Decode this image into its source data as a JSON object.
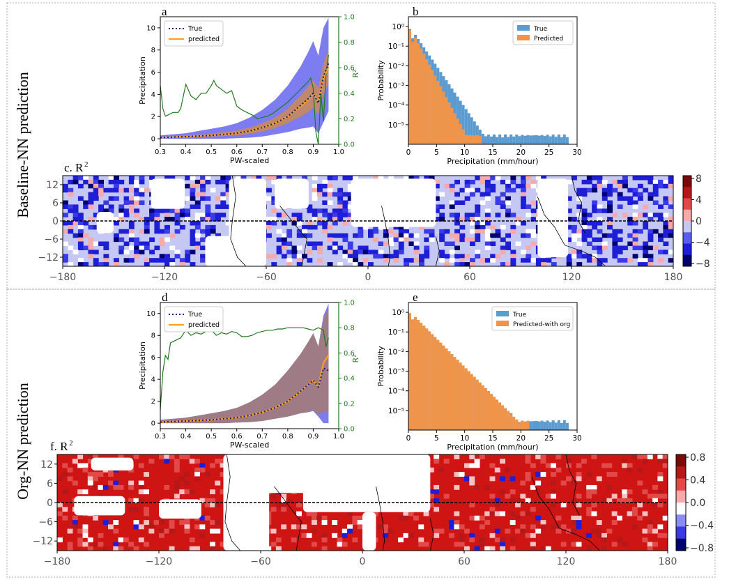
{
  "rows": [
    {
      "row_label": "Baseline-NN prediction"
    },
    {
      "row_label": "Org-NN prediction"
    }
  ],
  "colors": {
    "true_line": "#1a1a6e",
    "predicted_line": "#ff9f1c",
    "r2_line": "#1f7a1f",
    "true_band": "#6666ee",
    "predicted_band_a": "#d08a4a",
    "predicted_band_d": "#a87a6a",
    "hist_true": "#5b9bd0",
    "hist_pred": "#f0944a",
    "map_fill_a": "#c4c8f2",
    "map_fill_b": "#cf1414"
  },
  "chart_data": [
    {
      "panel": "a",
      "type": "line",
      "xlabel": "PW-scaled",
      "ylabel": "Precipitation",
      "ylabel2": "R²",
      "xlim": [
        0.3,
        1.0
      ],
      "ylim": [
        -0.5,
        11
      ],
      "ylim2": [
        0,
        1.0
      ],
      "xticks": [
        "0.3",
        "0.4",
        "0.5",
        "0.6",
        "0.7",
        "0.8",
        "0.9",
        "1.0"
      ],
      "yticks": [
        "0",
        "2",
        "4",
        "6",
        "8",
        "10"
      ],
      "yticks2": [
        "0.0",
        "0.2",
        "0.4",
        "0.6",
        "0.8",
        "1.0"
      ],
      "legend": [
        "True",
        "predicted"
      ],
      "x": [
        0.3,
        0.35,
        0.4,
        0.45,
        0.5,
        0.55,
        0.6,
        0.65,
        0.7,
        0.75,
        0.8,
        0.85,
        0.88,
        0.9,
        0.92,
        0.94,
        0.96
      ],
      "series": [
        {
          "name": "True",
          "values": [
            0.1,
            0.15,
            0.2,
            0.25,
            0.3,
            0.4,
            0.5,
            0.7,
            1.0,
            1.4,
            2.0,
            3.0,
            3.6,
            4.1,
            3.2,
            5.6,
            6.8
          ]
        },
        {
          "name": "predicted",
          "values": [
            0.1,
            0.15,
            0.2,
            0.25,
            0.3,
            0.4,
            0.5,
            0.7,
            1.0,
            1.4,
            2.0,
            2.9,
            3.5,
            4.0,
            3.4,
            5.4,
            6.5
          ]
        }
      ],
      "true_band_low": [
        0,
        0,
        0,
        0,
        0,
        0,
        0.05,
        0.1,
        0.2,
        0.4,
        0.6,
        0.9,
        1.0,
        1.1,
        0.5,
        1.5,
        2.5
      ],
      "true_band_high": [
        0.3,
        0.4,
        0.5,
        0.7,
        0.9,
        1.1,
        1.4,
        1.9,
        2.6,
        3.5,
        4.8,
        6.5,
        7.8,
        8.8,
        7.5,
        10.0,
        10.9
      ],
      "pred_band_low": [
        0.05,
        0.1,
        0.1,
        0.15,
        0.2,
        0.25,
        0.3,
        0.45,
        0.65,
        0.95,
        1.4,
        2.0,
        2.4,
        2.8,
        2.2,
        4.0,
        5.0
      ],
      "pred_band_high": [
        0.15,
        0.2,
        0.3,
        0.35,
        0.45,
        0.6,
        0.75,
        1.0,
        1.4,
        1.9,
        2.7,
        3.9,
        4.7,
        5.3,
        4.6,
        6.8,
        8.0
      ],
      "r2_x": [
        0.3,
        0.31,
        0.32,
        0.33,
        0.35,
        0.37,
        0.38,
        0.4,
        0.42,
        0.44,
        0.46,
        0.48,
        0.5,
        0.51,
        0.52,
        0.54,
        0.56,
        0.58,
        0.6,
        0.62,
        0.64,
        0.66,
        0.68,
        0.7,
        0.72,
        0.74,
        0.76,
        0.78,
        0.8,
        0.82,
        0.84,
        0.86,
        0.88,
        0.89,
        0.9,
        0.91,
        0.92,
        0.93,
        0.94,
        0.95,
        0.96
      ],
      "r2": [
        0.46,
        0.28,
        0.22,
        0.23,
        0.25,
        0.25,
        0.28,
        0.47,
        0.38,
        0.35,
        0.4,
        0.4,
        0.46,
        0.5,
        0.46,
        0.43,
        0.4,
        0.42,
        0.3,
        0.27,
        0.25,
        0.23,
        0.2,
        0.21,
        0.22,
        0.24,
        0.27,
        0.3,
        0.33,
        0.37,
        0.41,
        0.45,
        0.49,
        0.52,
        0.44,
        0.1,
        0.0,
        0.4,
        0.18,
        0.54,
        0.7
      ]
    },
    {
      "panel": "b",
      "type": "bar",
      "xlabel": "Precipitation (mm/hour)",
      "ylabel": "Probability",
      "yscale": "log",
      "xlim": [
        0,
        30
      ],
      "ylim_exp": [
        -6,
        0.5
      ],
      "xticks": [
        "0",
        "5",
        "10",
        "15",
        "20",
        "25",
        "30"
      ],
      "yticks": [
        "10⁰",
        "10⁻¹",
        "10⁻²",
        "10⁻³",
        "10⁻⁴",
        "10⁻⁵"
      ],
      "legend": [
        "True",
        "Predicted"
      ],
      "true_max": 28.5,
      "pred_max": 12.8,
      "series": [
        {
          "name": "True",
          "log10_at_0": 0.1,
          "log10_slope_per_mm": -0.42
        },
        {
          "name": "Predicted",
          "log10_at_0": 0.12,
          "log10_slope_per_mm": -0.55
        }
      ]
    },
    {
      "panel": "c",
      "type": "heatmap",
      "title": "c. R",
      "title_sup": "2",
      "xticks": [
        "−180",
        "−120",
        "−60",
        "0",
        "60",
        "120",
        "180"
      ],
      "yticks": [
        "12",
        "6",
        "0",
        "−6",
        "−12"
      ],
      "colorbar_ticks": [
        "8",
        "4",
        "0",
        "−4",
        "−8"
      ],
      "colorbar_colors": [
        "#7a0a0a",
        "#b51818",
        "#e24a4a",
        "#f8aaaa",
        "#c4c8f2",
        "#5a5cf0",
        "#1e1ed6",
        "#00006e"
      ]
    },
    {
      "panel": "d",
      "type": "line",
      "xlabel": "PW-scaled",
      "ylabel": "Precipitation",
      "ylabel2": "R²",
      "xlim": [
        0.3,
        1.0
      ],
      "ylim": [
        -0.5,
        11
      ],
      "ylim2": [
        0,
        1.0
      ],
      "xticks": [
        "0.3",
        "0.4",
        "0.5",
        "0.6",
        "0.7",
        "0.8",
        "0.9",
        "1.0"
      ],
      "yticks": [
        "0",
        "2",
        "4",
        "6",
        "8",
        "10"
      ],
      "yticks2": [
        "0.0",
        "0.2",
        "0.4",
        "0.6",
        "0.8",
        "1.0"
      ],
      "legend": [
        "True",
        "predicted"
      ],
      "x": [
        0.3,
        0.35,
        0.4,
        0.45,
        0.5,
        0.55,
        0.6,
        0.65,
        0.7,
        0.75,
        0.8,
        0.85,
        0.88,
        0.9,
        0.92,
        0.94,
        0.96
      ],
      "series": [
        {
          "name": "True",
          "values": [
            0.1,
            0.15,
            0.2,
            0.25,
            0.3,
            0.4,
            0.5,
            0.7,
            1.0,
            1.4,
            2.0,
            2.9,
            3.5,
            3.9,
            3.3,
            5.0,
            4.8
          ]
        },
        {
          "name": "predicted",
          "values": [
            0.1,
            0.15,
            0.2,
            0.25,
            0.3,
            0.4,
            0.5,
            0.7,
            1.0,
            1.4,
            2.0,
            2.9,
            3.5,
            3.9,
            3.3,
            5.5,
            6.2
          ]
        }
      ],
      "true_band_low": [
        0,
        0,
        0,
        0,
        0,
        0,
        0.05,
        0.1,
        0.2,
        0.4,
        0.6,
        0.9,
        1.0,
        1.1,
        0.6,
        0.0,
        0.0
      ],
      "true_band_high": [
        0.3,
        0.4,
        0.5,
        0.7,
        0.9,
        1.1,
        1.4,
        1.9,
        2.6,
        3.5,
        4.8,
        6.3,
        7.4,
        8.2,
        7.0,
        9.8,
        10.9
      ],
      "pred_band_low": [
        0,
        0,
        0,
        0,
        0,
        0,
        0.05,
        0.1,
        0.2,
        0.4,
        0.6,
        0.9,
        1.0,
        1.2,
        0.8,
        1.0,
        1.0
      ],
      "pred_band_high": [
        0.3,
        0.4,
        0.5,
        0.7,
        0.9,
        1.1,
        1.4,
        1.9,
        2.6,
        3.5,
        4.8,
        6.3,
        7.4,
        8.2,
        7.0,
        9.5,
        10.5
      ],
      "r2_x": [
        0.3,
        0.31,
        0.32,
        0.33,
        0.34,
        0.36,
        0.38,
        0.4,
        0.42,
        0.44,
        0.46,
        0.48,
        0.5,
        0.52,
        0.54,
        0.56,
        0.58,
        0.6,
        0.62,
        0.64,
        0.66,
        0.68,
        0.7,
        0.72,
        0.74,
        0.76,
        0.78,
        0.8,
        0.82,
        0.84,
        0.86,
        0.88,
        0.9,
        0.92,
        0.93,
        0.94,
        0.95,
        0.96
      ],
      "r2": [
        0.15,
        0.45,
        0.58,
        0.55,
        0.68,
        0.7,
        0.72,
        0.78,
        0.74,
        0.76,
        0.75,
        0.77,
        0.78,
        0.74,
        0.76,
        0.75,
        0.77,
        0.76,
        0.73,
        0.73,
        0.74,
        0.76,
        0.77,
        0.78,
        0.78,
        0.79,
        0.79,
        0.8,
        0.8,
        0.8,
        0.8,
        0.79,
        0.78,
        0.8,
        0.79,
        0.78,
        0.65,
        0.72
      ]
    },
    {
      "panel": "e",
      "type": "bar",
      "xlabel": "Precipitation (mm/hour)",
      "ylabel": "Probability",
      "yscale": "log",
      "xlim": [
        0,
        30
      ],
      "ylim_exp": [
        -6,
        0.5
      ],
      "xticks": [
        "0",
        "5",
        "10",
        "15",
        "20",
        "25",
        "30"
      ],
      "yticks": [
        "10⁰",
        "10⁻¹",
        "10⁻²",
        "10⁻³",
        "10⁻⁴",
        "10⁻⁵"
      ],
      "legend": [
        "True",
        "Predicted-with org"
      ],
      "true_max": 28.5,
      "pred_max": 21.5,
      "series": [
        {
          "name": "True",
          "log10_at_0": 0.1,
          "log10_slope_per_mm": -0.3
        },
        {
          "name": "Predicted-with org",
          "log10_at_0": 0.12,
          "log10_slope_per_mm": -0.29
        }
      ]
    },
    {
      "panel": "f",
      "type": "heatmap",
      "title": "f. R",
      "title_sup": "2",
      "xticks": [
        "−180",
        "−120",
        "−60",
        "0",
        "60",
        "120",
        "180"
      ],
      "yticks": [
        "12",
        "6",
        "0",
        "−6",
        "−12"
      ],
      "colorbar_ticks": [
        "0.8",
        "0.4",
        "0.0",
        "−0.4",
        "−0.8"
      ],
      "colorbar_colors": [
        "#7a0a0a",
        "#b51818",
        "#e24a4a",
        "#f8aaaa",
        "#ffffff",
        "#8a8cf5",
        "#3a3ae0",
        "#00006e"
      ]
    }
  ]
}
